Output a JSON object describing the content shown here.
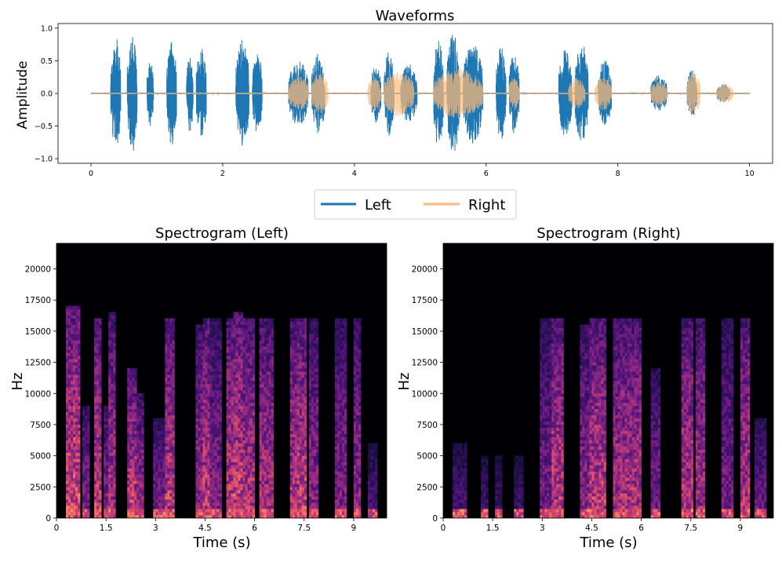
{
  "chart_data": [
    {
      "type": "line",
      "title": "Waveforms",
      "xlabel": "",
      "ylabel": "Amplitude",
      "xlim": [
        -0.5,
        10.35
      ],
      "ylim": [
        -1.07,
        1.07
      ],
      "xticks": [
        0,
        2,
        4,
        6,
        8,
        10
      ],
      "xtick_labels": [
        "0",
        "2",
        "4",
        "6",
        "8",
        "10"
      ],
      "yticks": [
        1.0,
        0.5,
        0.0,
        -0.5,
        -1.0
      ],
      "ytick_labels": [
        "1.0",
        "0.5",
        "0.0",
        "−0.5",
        "−1.0"
      ],
      "legend": {
        "placement": "below",
        "entries": [
          "Left",
          "Right"
        ]
      },
      "series": [
        {
          "name": "Left",
          "color": "#1f77b4",
          "segments": [
            [
              0.3,
              0.45,
              0.87
            ],
            [
              0.55,
              0.7,
              0.91
            ],
            [
              0.85,
              0.95,
              0.5
            ],
            [
              1.15,
              1.3,
              0.82
            ],
            [
              1.45,
              1.55,
              0.6
            ],
            [
              1.6,
              1.75,
              0.7
            ],
            [
              2.2,
              2.4,
              0.82
            ],
            [
              2.45,
              2.6,
              0.65
            ],
            [
              3.0,
              3.3,
              0.5
            ],
            [
              3.35,
              3.55,
              0.62
            ],
            [
              4.25,
              4.4,
              0.45
            ],
            [
              4.45,
              4.6,
              0.65
            ],
            [
              4.7,
              4.95,
              0.45
            ],
            [
              5.2,
              5.35,
              0.85
            ],
            [
              5.4,
              5.6,
              0.92
            ],
            [
              5.65,
              5.95,
              0.8
            ],
            [
              6.15,
              6.3,
              0.72
            ],
            [
              6.35,
              6.5,
              0.62
            ],
            [
              7.1,
              7.3,
              0.68
            ],
            [
              7.35,
              7.55,
              0.78
            ],
            [
              7.7,
              7.9,
              0.52
            ],
            [
              8.5,
              8.75,
              0.28
            ],
            [
              9.05,
              9.2,
              0.36
            ],
            [
              9.5,
              9.7,
              0.15
            ]
          ]
        },
        {
          "name": "Right",
          "color": "#ffbb78",
          "segments": [
            [
              3.0,
              3.3,
              0.28
            ],
            [
              3.35,
              3.6,
              0.32
            ],
            [
              4.2,
              4.4,
              0.27
            ],
            [
              4.45,
              4.9,
              0.36
            ],
            [
              5.2,
              5.95,
              0.38
            ],
            [
              6.35,
              6.5,
              0.25
            ],
            [
              7.25,
              7.5,
              0.24
            ],
            [
              7.65,
              7.9,
              0.26
            ],
            [
              8.5,
              8.75,
              0.2
            ],
            [
              9.05,
              9.25,
              0.34
            ],
            [
              9.5,
              9.75,
              0.15
            ]
          ]
        }
      ]
    },
    {
      "type": "heatmap",
      "title": "Spectrogram (Left)",
      "xlabel": "Time (s)",
      "ylabel": "Hz",
      "xlim": [
        0,
        10
      ],
      "ylim": [
        0,
        22050
      ],
      "colormap": "magma",
      "xticks": [
        0,
        1.5,
        3,
        4.5,
        6,
        7.5,
        9
      ],
      "xtick_labels": [
        "0",
        "1.5",
        "3",
        "4.5",
        "6",
        "7.5",
        "9"
      ],
      "yticks": [
        0,
        2500,
        5000,
        7500,
        10000,
        12500,
        15000,
        17500,
        20000
      ],
      "ytick_labels": [
        "0",
        "2500",
        "5000",
        "7500",
        "10000",
        "12500",
        "15000",
        "17500",
        "20000"
      ],
      "bursts": [
        [
          0.3,
          0.45,
          0.9,
          17000
        ],
        [
          0.55,
          0.7,
          0.95,
          17000
        ],
        [
          0.85,
          0.95,
          0.6,
          9000
        ],
        [
          1.15,
          1.3,
          0.85,
          16000
        ],
        [
          1.45,
          1.55,
          0.6,
          9000
        ],
        [
          1.6,
          1.75,
          0.75,
          16500
        ],
        [
          2.2,
          2.4,
          0.85,
          12000
        ],
        [
          2.45,
          2.6,
          0.7,
          10000
        ],
        [
          3.0,
          3.3,
          0.55,
          8000
        ],
        [
          3.35,
          3.55,
          0.85,
          16000
        ],
        [
          4.25,
          4.4,
          0.7,
          15500
        ],
        [
          4.45,
          4.6,
          0.85,
          16000
        ],
        [
          4.7,
          4.95,
          0.6,
          16000
        ],
        [
          5.2,
          5.35,
          0.85,
          16000
        ],
        [
          5.4,
          5.6,
          0.9,
          16500
        ],
        [
          5.65,
          5.95,
          0.8,
          16000
        ],
        [
          6.15,
          6.3,
          0.8,
          16000
        ],
        [
          6.35,
          6.5,
          0.75,
          16000
        ],
        [
          7.1,
          7.3,
          0.8,
          16000
        ],
        [
          7.35,
          7.55,
          0.9,
          16000
        ],
        [
          7.7,
          7.9,
          0.65,
          16000
        ],
        [
          8.5,
          8.75,
          0.6,
          16000
        ],
        [
          9.05,
          9.2,
          0.65,
          16000
        ],
        [
          9.5,
          9.7,
          0.4,
          6000
        ]
      ]
    },
    {
      "type": "heatmap",
      "title": "Spectrogram (Right)",
      "xlabel": "Time (s)",
      "ylabel": "Hz",
      "xlim": [
        0,
        10
      ],
      "ylim": [
        0,
        22050
      ],
      "colormap": "magma",
      "xticks": [
        0,
        1.5,
        3,
        4.5,
        6,
        7.5,
        9
      ],
      "xtick_labels": [
        "0",
        "1.5",
        "3",
        "4.5",
        "6",
        "7.5",
        "9"
      ],
      "yticks": [
        0,
        2500,
        5000,
        7500,
        10000,
        12500,
        15000,
        17500,
        20000
      ],
      "ytick_labels": [
        "0",
        "2500",
        "5000",
        "7500",
        "10000",
        "12500",
        "15000",
        "17500",
        "20000"
      ],
      "bursts": [
        [
          0.3,
          0.45,
          0.4,
          6000
        ],
        [
          0.55,
          0.7,
          0.4,
          6000
        ],
        [
          1.15,
          1.3,
          0.35,
          5000
        ],
        [
          1.6,
          1.75,
          0.35,
          5000
        ],
        [
          2.2,
          2.4,
          0.35,
          5000
        ],
        [
          3.0,
          3.3,
          0.55,
          16000
        ],
        [
          3.35,
          3.6,
          0.85,
          16000
        ],
        [
          4.2,
          4.4,
          0.65,
          15500
        ],
        [
          4.45,
          4.9,
          0.85,
          16000
        ],
        [
          5.2,
          5.35,
          0.75,
          16000
        ],
        [
          5.4,
          5.95,
          0.8,
          16000
        ],
        [
          6.35,
          6.5,
          0.55,
          12000
        ],
        [
          7.25,
          7.5,
          0.8,
          16000
        ],
        [
          7.65,
          7.9,
          0.75,
          16000
        ],
        [
          8.5,
          8.75,
          0.55,
          16000
        ],
        [
          9.05,
          9.25,
          0.8,
          16000
        ],
        [
          9.5,
          9.75,
          0.5,
          8000
        ]
      ]
    }
  ]
}
